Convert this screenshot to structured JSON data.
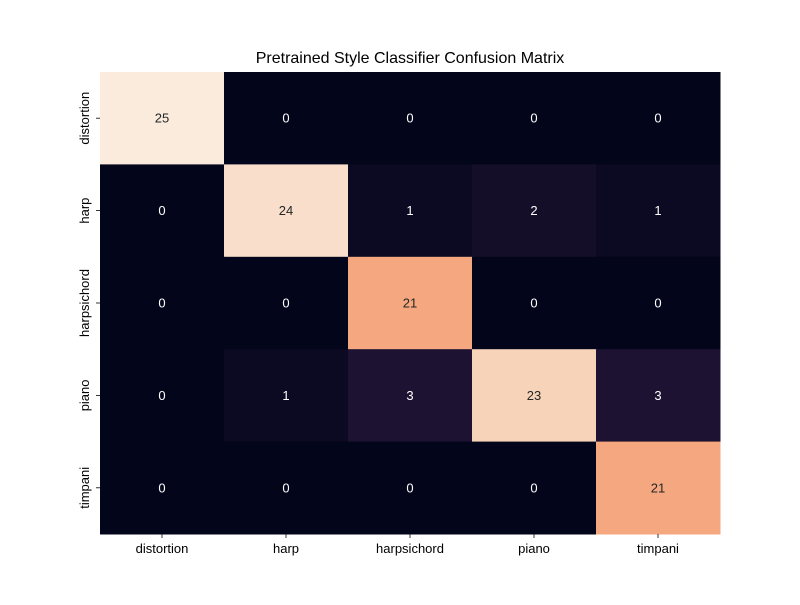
{
  "chart_data": {
    "type": "heatmap",
    "title": "Pretrained Style Classifier Confusion Matrix",
    "xlabel": "",
    "ylabel": "",
    "x_categories": [
      "distortion",
      "harp",
      "harpsichord",
      "piano",
      "timpani"
    ],
    "y_categories": [
      "distortion",
      "harp",
      "harpsichord",
      "piano",
      "timpani"
    ],
    "values": [
      [
        25,
        0,
        0,
        0,
        0
      ],
      [
        0,
        24,
        1,
        2,
        1
      ],
      [
        0,
        0,
        21,
        0,
        0
      ],
      [
        0,
        1,
        3,
        23,
        3
      ],
      [
        0,
        0,
        0,
        0,
        21
      ]
    ],
    "value_range": [
      0,
      25
    ],
    "colorbar": false,
    "annotations": true,
    "colormap": "rocket",
    "colors": {
      "low": "#03051a",
      "high": "#faebdd",
      "annotation_text": "#ffffff",
      "annotation_text_light_bg": "#262626"
    }
  }
}
